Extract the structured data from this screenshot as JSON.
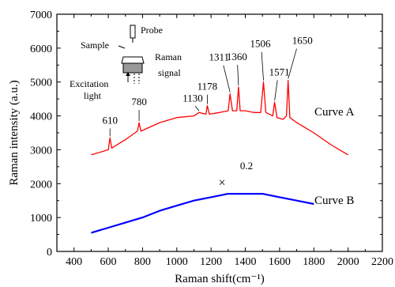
{
  "chart_data": {
    "type": "line",
    "xlabel": "Raman shift(cm⁻¹)",
    "ylabel": "Raman intensity (a.u.)",
    "xlim": [
      300,
      2200
    ],
    "ylim": [
      0,
      7000
    ],
    "x_ticks": [
      400,
      600,
      800,
      1000,
      1200,
      1400,
      1600,
      1800,
      2000,
      2200
    ],
    "x_tick_labels": [
      "400",
      "600",
      "800",
      "1000",
      "1200",
      "1400",
      "1600",
      "1800",
      "2000",
      "2200"
    ],
    "y_ticks": [
      0,
      1000,
      2000,
      3000,
      4000,
      5000,
      6000,
      7000
    ],
    "y_tick_labels": [
      "0",
      "1000",
      "2000",
      "3000",
      "4000",
      "5000",
      "6000",
      "7000"
    ],
    "grid": false,
    "series": [
      {
        "name": "Curve A",
        "color": "#ff0000",
        "x": [
          500,
          600,
          610,
          620,
          700,
          770,
          780,
          790,
          900,
          1000,
          1100,
          1130,
          1170,
          1178,
          1190,
          1250,
          1300,
          1311,
          1325,
          1350,
          1360,
          1370,
          1400,
          1450,
          1490,
          1506,
          1520,
          1560,
          1571,
          1585,
          1620,
          1640,
          1650,
          1660,
          1700,
          1800,
          1900,
          2000
        ],
        "y": [
          2850,
          3000,
          3350,
          3050,
          3300,
          3550,
          3800,
          3550,
          3800,
          3950,
          4000,
          4100,
          4050,
          4300,
          4050,
          4100,
          4150,
          4650,
          4150,
          4150,
          4850,
          4150,
          4150,
          4100,
          4100,
          5000,
          4100,
          4000,
          4400,
          3950,
          3900,
          4000,
          5050,
          3950,
          3800,
          3500,
          3150,
          2850
        ]
      },
      {
        "name": "Curve B",
        "color": "#0000ff",
        "x": [
          500,
          600,
          700,
          800,
          900,
          1000,
          1100,
          1200,
          1300,
          1400,
          1500,
          1600,
          1700,
          1800
        ],
        "y": [
          550,
          700,
          850,
          1000,
          1200,
          1350,
          1500,
          1600,
          1700,
          1700,
          1700,
          1600,
          1500,
          1400
        ]
      }
    ],
    "peak_labels": [
      {
        "text": "610",
        "x": 610,
        "y": 3350
      },
      {
        "text": "780",
        "x": 780,
        "y": 3800
      },
      {
        "text": "1130",
        "x": 1130,
        "y": 4100
      },
      {
        "text": "1178",
        "x": 1178,
        "y": 4300
      },
      {
        "text": "1311",
        "x": 1311,
        "y": 4650
      },
      {
        "text": "1360",
        "x": 1360,
        "y": 4850
      },
      {
        "text": "1506",
        "x": 1506,
        "y": 5000
      },
      {
        "text": "1571",
        "x": 1571,
        "y": 4400
      },
      {
        "text": "1650",
        "x": 1650,
        "y": 5050
      }
    ],
    "annotations": {
      "curve_a_label": "Curve A",
      "curve_b_label": "Curve B",
      "scale_factor": "0.2",
      "scale_marker": "×"
    },
    "inset": {
      "sample_label": "Sample",
      "probe_label": "Probe",
      "raman_label": "Raman",
      "signal_label": "signal",
      "excitation_label": "Excitation",
      "light_label": "light"
    }
  }
}
